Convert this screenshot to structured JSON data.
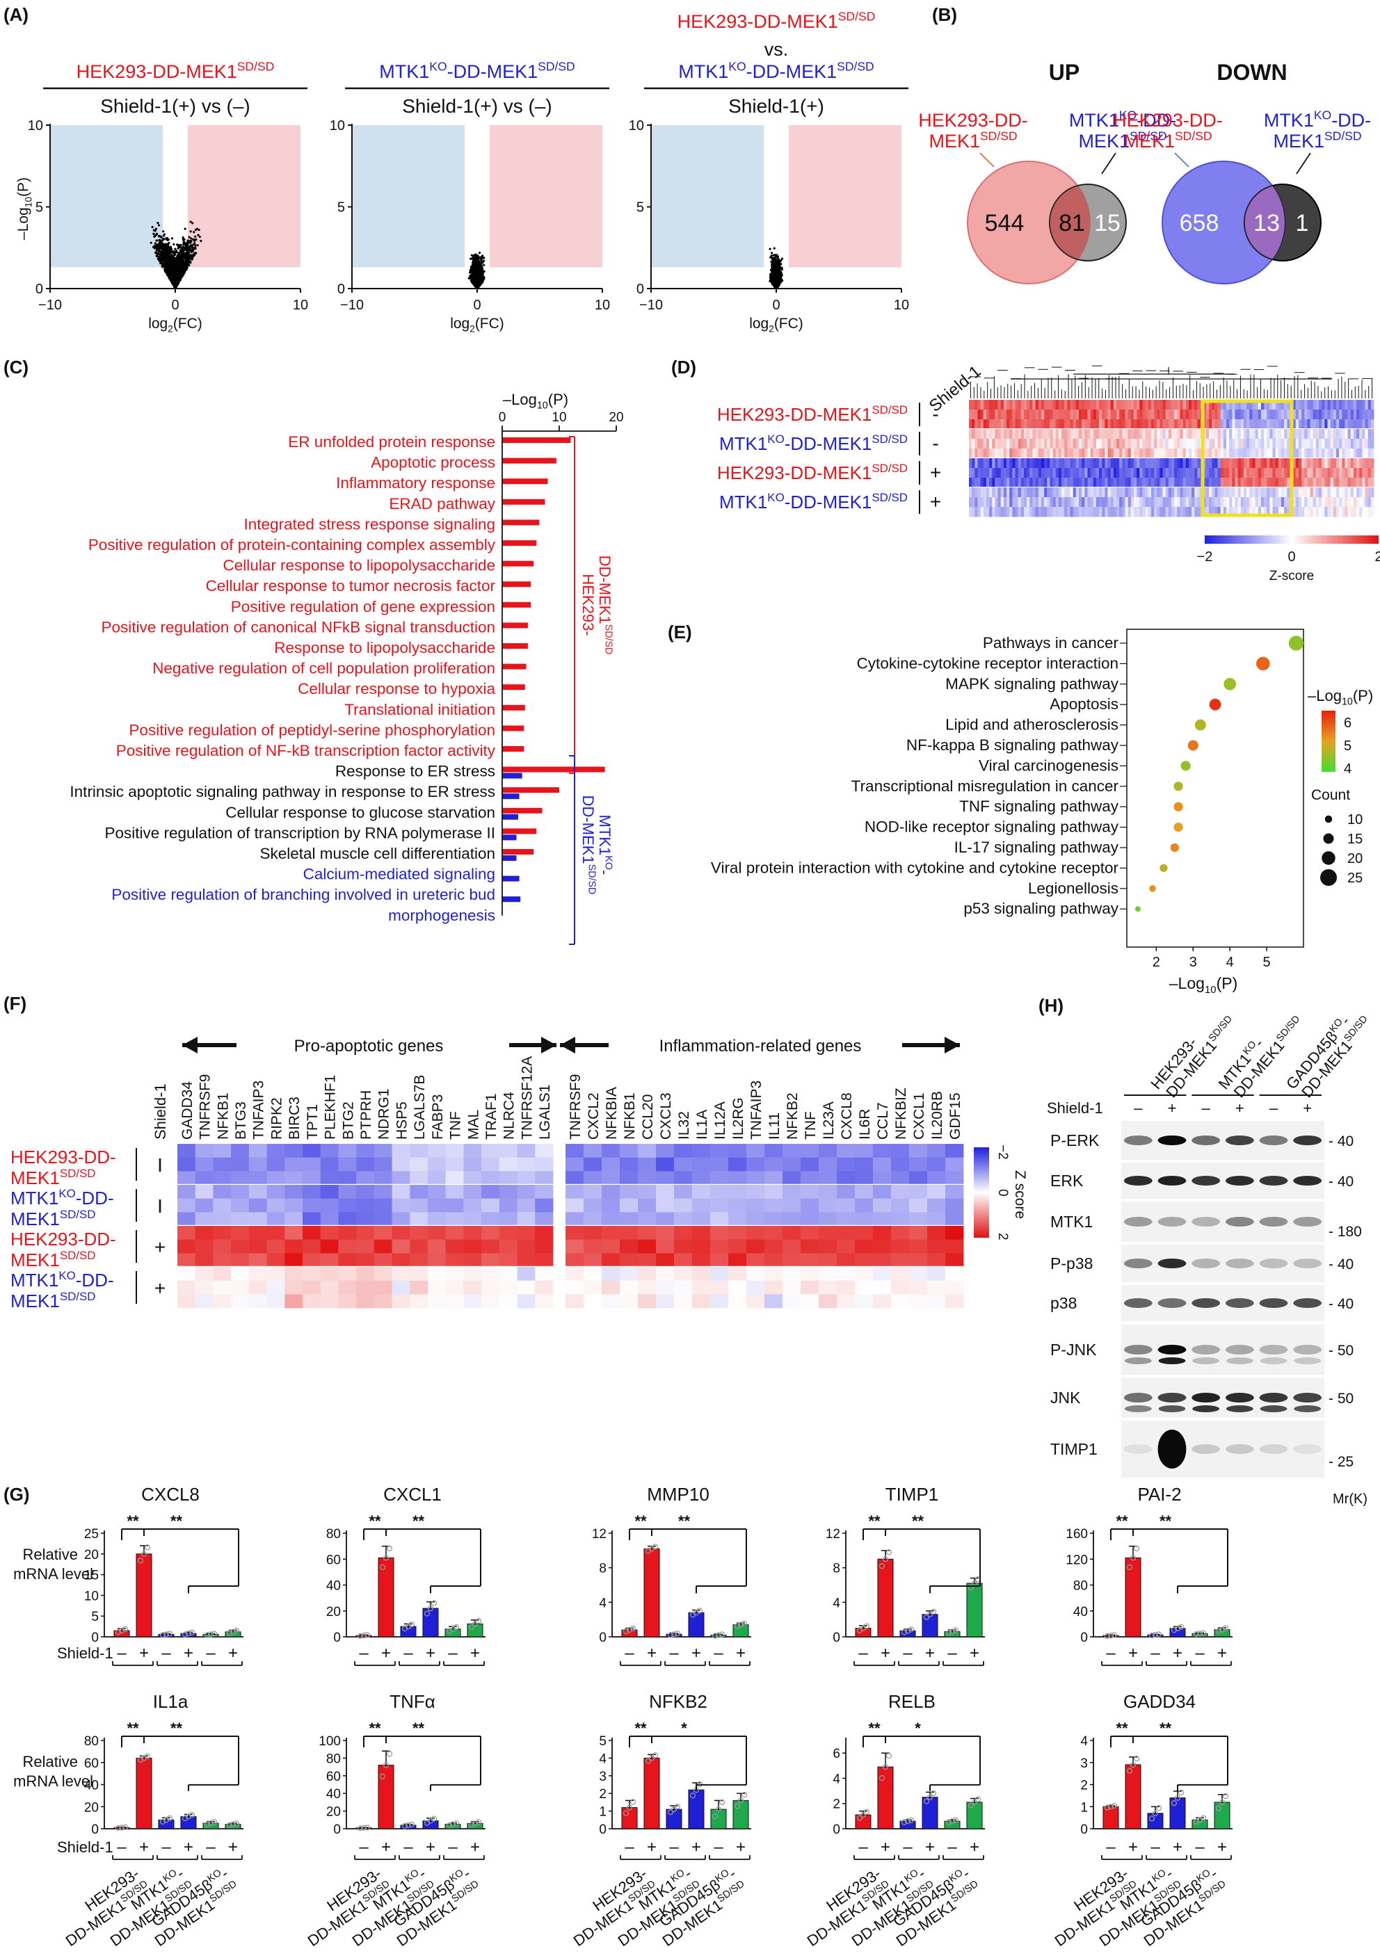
{
  "panels": {
    "A": {
      "letter": "(A)",
      "volcanoes": [
        {
          "title": "HEK293-DD-MEK1",
          "title_sup": "SD/SD",
          "title_color": "#e8141c",
          "title_line2": "",
          "line2_color": "",
          "line2_sup": "",
          "subtitle": "Shield-1(+) vs (–)",
          "spread": 1.0
        },
        {
          "title": "MTK1",
          "title_mid": "KO",
          "title_tail": "-DD-MEK1",
          "title_sup": "SD/SD",
          "title_color": "#1f1fd6",
          "subtitle": "Shield-1(+) vs (–)",
          "spread": 0.35
        },
        {
          "title": "HEK293-DD-MEK1",
          "title_sup": "SD/SD",
          "title_color": "#e8141c",
          "vs": "vs.",
          "line3": "MTK1",
          "line3_mid": "KO",
          "line3_tail": "-DD-MEK1",
          "line3_sup": "SD/SD",
          "line3_color": "#1f1fd6",
          "subtitle": "Shield-1(+)",
          "spread": 0.3
        }
      ],
      "ylabel_pre": "–Log",
      "ylabel_sub": "10",
      "ylabel_post": "(P)",
      "xlabel_pre": "log",
      "xlabel_sub": "2",
      "xlabel_post": "(FC)",
      "xticks": [
        "−10",
        "0",
        "10"
      ],
      "yticks": [
        "0",
        "5",
        "10"
      ]
    },
    "B": {
      "letter": "(B)",
      "up": {
        "title": "UP",
        "left_label1": "HEK293-DD-",
        "left_label2": "MEK1",
        "left_sup": "SD/SD",
        "right_label1": "MTK1",
        "right_mid": "KO",
        "right_tail": "-DD-",
        "right_label2": "MEK1",
        "right_sup": "SD/SD",
        "left_only": "544",
        "overlap": "81",
        "right_only": "15"
      },
      "down": {
        "title": "DOWN",
        "left_label1": "HEK293-DD-",
        "left_label2": "MEK1",
        "left_sup": "SD/SD",
        "right_label1": "MTK1",
        "right_mid": "KO",
        "right_tail": "-DD-",
        "right_label2": "MEK1",
        "right_sup": "SD/SD",
        "left_only": "658",
        "overlap": "13",
        "right_only": "1"
      }
    },
    "C": {
      "letter": "(C)",
      "axis_title_pre": "–Log",
      "axis_title_sub": "10",
      "axis_title_post": "(P)",
      "xticks": [
        "0",
        "10",
        "20"
      ],
      "terms": [
        {
          "label": "ER unfolded protein response",
          "color": "#e8141c",
          "red": 12,
          "blue": 0
        },
        {
          "label": "Apoptotic process",
          "color": "#e8141c",
          "red": 9.5,
          "blue": 0
        },
        {
          "label": "Inflammatory response",
          "color": "#e8141c",
          "red": 8,
          "blue": 0
        },
        {
          "label": "ERAD pathway",
          "color": "#e8141c",
          "red": 7.5,
          "blue": 0
        },
        {
          "label": "Integrated stress response signaling",
          "color": "#e8141c",
          "red": 6.5,
          "blue": 0
        },
        {
          "label": "Positive regulation of protein-containing complex assembly",
          "color": "#e8141c",
          "red": 6,
          "blue": 0
        },
        {
          "label": "Cellular response to lipopolysaccharide",
          "color": "#e8141c",
          "red": 5.5,
          "blue": 0
        },
        {
          "label": "Cellular response to tumor necrosis factor",
          "color": "#e8141c",
          "red": 5,
          "blue": 0
        },
        {
          "label": "Positive regulation of gene expression",
          "color": "#e8141c",
          "red": 5,
          "blue": 0
        },
        {
          "label": "Positive regulation of canonical NFkB signal transduction",
          "color": "#e8141c",
          "red": 4.5,
          "blue": 0
        },
        {
          "label": "Response to lipopolysaccharide",
          "color": "#e8141c",
          "red": 4.5,
          "blue": 0
        },
        {
          "label": "Negative regulation of cell population proliferation",
          "color": "#e8141c",
          "red": 4.2,
          "blue": 0
        },
        {
          "label": "Cellular response to hypoxia",
          "color": "#e8141c",
          "red": 4,
          "blue": 0
        },
        {
          "label": "Translational initiation",
          "color": "#e8141c",
          "red": 4,
          "blue": 0
        },
        {
          "label": "Positive regulation of peptidyl-serine phosphorylation",
          "color": "#e8141c",
          "red": 3.8,
          "blue": 0
        },
        {
          "label": "Positive regulation of NF-kB transcription factor activity",
          "color": "#e8141c",
          "red": 3.8,
          "blue": 0
        },
        {
          "label": "Response to ER stress",
          "color": "#111111",
          "red": 18,
          "blue": 3.5
        },
        {
          "label": "Intrinsic apoptotic signaling pathway in response to  ER stress",
          "color": "#111111",
          "red": 10,
          "blue": 3
        },
        {
          "label": "Cellular response to glucose starvation",
          "color": "#111111",
          "red": 7,
          "blue": 2.8
        },
        {
          "label": "Positive regulation of transcription by RNA polymerase II",
          "color": "#111111",
          "red": 6,
          "blue": 2.5
        },
        {
          "label": "Skeletal muscle cell differentiation",
          "color": "#111111",
          "red": 5.5,
          "blue": 2.5
        },
        {
          "label": "Calcium-mediated signaling",
          "color": "#1f1fd6",
          "red": 0,
          "blue": 3
        },
        {
          "label": "Positive regulation of branching involved in ureteric bud",
          "color": "#1f1fd6",
          "red": 0,
          "blue": 3.2
        },
        {
          "label": "morphogenesis",
          "color": "#1f1fd6",
          "red": 0,
          "blue": 0
        }
      ],
      "bracket_red_1": "HEK293-",
      "bracket_red_2": "DD-MEK1",
      "bracket_red_sup": "SD/SD",
      "bracket_blue_1": "MTK1",
      "bracket_blue_mid": "KO",
      "bracket_blue_2": "-",
      "bracket_blue_3": "DD-MEK1",
      "bracket_blue_sup": "SD/SD"
    },
    "D": {
      "letter": "(D)",
      "column_header": "Shield-1",
      "rows": [
        {
          "name": "HEK293-DD-MEK1",
          "sup": "SD/SD",
          "color": "#e8141c",
          "sign": "-"
        },
        {
          "name": "MTK1",
          "mid": "KO",
          "tail": "-DD-MEK1",
          "sup": "SD/SD",
          "color": "#1f1fd6",
          "sign": "-"
        },
        {
          "name": "HEK293-DD-MEK1",
          "sup": "SD/SD",
          "color": "#e8141c",
          "sign": "+"
        },
        {
          "name": "MTK1",
          "mid": "KO",
          "tail": "-DD-MEK1",
          "sup": "SD/SD",
          "color": "#1f1fd6",
          "sign": "+"
        }
      ],
      "scale_ticks": [
        "−2",
        "0",
        "2"
      ],
      "scale_label": "Z-score"
    },
    "E": {
      "letter": "(E)",
      "xlabel_pre": "–Log",
      "xlabel_sub": "10",
      "xlabel_post": "(P)",
      "xticks": [
        "2",
        "3",
        "4",
        "5"
      ],
      "legend_color_title_pre": "–Log",
      "legend_color_title_sub": "10",
      "legend_color_title_post": "(P)",
      "legend_color_ticks": [
        "6",
        "5",
        "4"
      ],
      "legend_size_title": "Count",
      "legend_size_ticks": [
        "10",
        "15",
        "20",
        "25"
      ],
      "pathways": [
        {
          "label": "Pathways in cancer",
          "x": 5.8,
          "count": 22,
          "p": 4.2
        },
        {
          "label": "Cytokine-cytokine receptor interaction",
          "x": 4.9,
          "count": 20,
          "p": 5.7
        },
        {
          "label": "MAPK signaling pathway",
          "x": 4.0,
          "count": 18,
          "p": 4.3
        },
        {
          "label": "Apoptosis",
          "x": 3.6,
          "count": 17,
          "p": 6.3
        },
        {
          "label": "Lipid and atherosclerosis",
          "x": 3.2,
          "count": 16,
          "p": 4.5
        },
        {
          "label": "NF-kappa B signaling pathway",
          "x": 3.0,
          "count": 15,
          "p": 5.5
        },
        {
          "label": "Viral carcinogenesis",
          "x": 2.8,
          "count": 14,
          "p": 4.2
        },
        {
          "label": "Transcriptional misregulation in cancer",
          "x": 2.6,
          "count": 13,
          "p": 4.5
        },
        {
          "label": "TNF signaling pathway",
          "x": 2.6,
          "count": 13,
          "p": 5.2
        },
        {
          "label": "NOD-like receptor signaling pathway",
          "x": 2.6,
          "count": 13,
          "p": 5.0
        },
        {
          "label": "IL-17 signaling pathway",
          "x": 2.5,
          "count": 12,
          "p": 5.3
        },
        {
          "label": "Viral protein interaction with cytokine and cytokine receptor",
          "x": 2.2,
          "count": 11,
          "p": 4.6
        },
        {
          "label": "Legionellosis",
          "x": 1.9,
          "count": 9,
          "p": 5.2
        },
        {
          "label": "p53 signaling pathway",
          "x": 1.5,
          "count": 7,
          "p": 3.8
        }
      ]
    },
    "F": {
      "letter": "(F)",
      "group_left": "Pro-apoptotic genes",
      "group_right": "Inflammation-related genes",
      "shield_header": "Shield-1",
      "genes_left": [
        "GADD34",
        "TNFRSF9",
        "NFKB1",
        "BTG3",
        "TNFAIP3",
        "RIPK2",
        "BIRC3",
        "TPT1",
        "PLEKHF1",
        "BTG2",
        "PTPRH",
        "NDRG1",
        "HSP5",
        "LGALS7B",
        "FABP3",
        "TNF",
        "MAL",
        "TRAF1",
        "NLRC4",
        "TNFRSF12A",
        "LGALS1"
      ],
      "genes_right": [
        "TNFRSF9",
        "CXCL2",
        "NFKBIA",
        "NFKB1",
        "CCL20",
        "CXCL3",
        "IL32",
        "IL1A",
        "IL12A",
        "IL2RG",
        "TNFAIP3",
        "IL11",
        "NFKB2",
        "TNF",
        "IL23A",
        "CXCL8",
        "IL6R",
        "CCL7",
        "NFKBIZ",
        "CXCL1",
        "IL20RB",
        "GDF15"
      ],
      "rows": [
        {
          "name1": "HEK293-DD-",
          "name2": "MEK1",
          "sup": "SD/SD",
          "color": "#e8141c",
          "sign": "I"
        },
        {
          "name1": "MTK1",
          "mid": "KO",
          "tail": "-DD-",
          "name2": "MEK1",
          "sup": "SD/SD",
          "color": "#1f1fd6",
          "sign": "I"
        },
        {
          "name1": "HEK293-DD-",
          "name2": "MEK1",
          "sup": "SD/SD",
          "color": "#e8141c",
          "sign": "+"
        },
        {
          "name1": "MTK1",
          "mid": "KO",
          "tail": "-DD-",
          "name2": "MEK1",
          "sup": "SD/SD",
          "color": "#1f1fd6",
          "sign": "+"
        }
      ],
      "scale_ticks": [
        "−2",
        "0",
        "2"
      ],
      "scale_label": "Z score"
    },
    "G": {
      "letter": "(G)",
      "ylabel1": "Relative",
      "ylabel2": "mRNA level",
      "shield_label": "Shield-1",
      "sign_minus": "–",
      "sign_plus": "+",
      "groups": [
        {
          "l1": "HEK293-",
          "l2": "DD-MEK1",
          "sup": "SD/SD"
        },
        {
          "l1": "MTK1",
          "mid": "KO",
          "tail": "-",
          "l2": "DD-MEK1",
          "sup": "SD/SD"
        },
        {
          "l1": "GADD45β",
          "mid": "KO",
          "tail": "-",
          "l2": "DD-MEK1",
          "sup": "SD/SD"
        }
      ],
      "charts": [
        {
          "title": "CXCL8",
          "ymax": 25,
          "ticks": [
            0,
            5,
            10,
            15,
            20,
            25
          ],
          "values": [
            1.5,
            20,
            0.6,
            0.8,
            0.6,
            1.2
          ],
          "errors": [
            0.5,
            2,
            0.2,
            0.3,
            0.2,
            0.4
          ],
          "sig1": "**",
          "sig2": "**"
        },
        {
          "title": "CXCL1",
          "ymax": 80,
          "ticks": [
            0,
            20,
            40,
            60,
            80
          ],
          "values": [
            1,
            61,
            8,
            22,
            6,
            10
          ],
          "errors": [
            0.5,
            9,
            2,
            5,
            2,
            3
          ],
          "sig1": "**",
          "sig2": "**"
        },
        {
          "title": "MMP10",
          "ymax": 12,
          "ticks": [
            0,
            4,
            8,
            12
          ],
          "values": [
            0.8,
            10.2,
            0.3,
            2.8,
            0.2,
            1.4
          ],
          "errors": [
            0.2,
            0.3,
            0.1,
            0.3,
            0.1,
            0.2
          ],
          "sig1": "**",
          "sig2": "**"
        },
        {
          "title": "TIMP1",
          "ymax": 12,
          "ticks": [
            0,
            4,
            8,
            12
          ],
          "values": [
            1,
            9,
            0.7,
            2.6,
            0.6,
            6.2
          ],
          "errors": [
            0.3,
            1,
            0.2,
            0.4,
            0.2,
            0.6
          ],
          "sig1": "**",
          "sig2": "**"
        },
        {
          "title": "PAI-2",
          "ymax": 160,
          "ticks": [
            0,
            40,
            80,
            120,
            160
          ],
          "values": [
            2,
            122,
            3,
            13,
            5,
            11
          ],
          "errors": [
            1,
            18,
            1,
            3,
            1,
            3
          ],
          "sig1": "**",
          "sig2": "**"
        },
        {
          "title": "IL1a",
          "ymax": 80,
          "ticks": [
            0,
            20,
            40,
            60,
            80
          ],
          "values": [
            1,
            64,
            8,
            11,
            5,
            4
          ],
          "errors": [
            0.5,
            2,
            2,
            2,
            1.5,
            1
          ],
          "sig1": "**",
          "sig2": "**"
        },
        {
          "title": "TNFα",
          "ymax": 100,
          "ticks": [
            0,
            20,
            40,
            60,
            80,
            100
          ],
          "values": [
            1,
            72,
            4,
            9,
            5,
            6
          ],
          "errors": [
            0.5,
            16,
            1,
            3,
            1.5,
            2
          ],
          "sig1": "**",
          "sig2": "**"
        },
        {
          "title": "NFKB2",
          "ymax": 5,
          "ticks": [
            0,
            1,
            2,
            3,
            4,
            5
          ],
          "values": [
            1.2,
            4,
            1.1,
            2.2,
            1.1,
            1.6
          ],
          "errors": [
            0.4,
            0.2,
            0.2,
            0.4,
            0.5,
            0.4
          ],
          "sig1": "**",
          "sig2": "*"
        },
        {
          "title": "RELB",
          "ymax": 7,
          "ticks": [
            0,
            2,
            4,
            6
          ],
          "values": [
            1.1,
            4.9,
            0.6,
            2.5,
            0.6,
            2.1
          ],
          "errors": [
            0.3,
            1.1,
            0.1,
            0.4,
            0.1,
            0.3
          ],
          "sig1": "**",
          "sig2": "*"
        },
        {
          "title": "GADD34",
          "ymax": 4,
          "ticks": [
            0,
            1,
            2,
            3,
            4
          ],
          "values": [
            1,
            2.9,
            0.7,
            1.4,
            0.4,
            1.2
          ],
          "errors": [
            0.05,
            0.35,
            0.3,
            0.3,
            0.1,
            0.35
          ],
          "sig1": "**",
          "sig2": "**"
        }
      ]
    },
    "H": {
      "letter": "(H)",
      "lanes": [
        {
          "l1": "HEK293-",
          "l2": "DD-MEK1",
          "sup": "SD/SD"
        },
        {
          "l1": "MTK1",
          "mid": "KO",
          "tail": "-",
          "l2": "DD-MEK1",
          "sup": "SD/SD"
        },
        {
          "l1": "GADD45β",
          "mid": "KO",
          "tail": "-",
          "l2": "DD-MEK1",
          "sup": "SD/SD"
        }
      ],
      "shield_label": "Shield-1",
      "blots": [
        {
          "name": "P-ERK",
          "mw": "40"
        },
        {
          "name": "ERK",
          "mw": "40"
        },
        {
          "name": "MTK1",
          "mw": "180"
        },
        {
          "name": "P-p38",
          "mw": "40"
        },
        {
          "name": "p38",
          "mw": "40"
        },
        {
          "name": "P-JNK",
          "mw": "50"
        },
        {
          "name": "JNK",
          "mw": "50"
        },
        {
          "name": "TIMP1",
          "mw": "25"
        }
      ],
      "mr_label": "Mr(K)"
    }
  }
}
